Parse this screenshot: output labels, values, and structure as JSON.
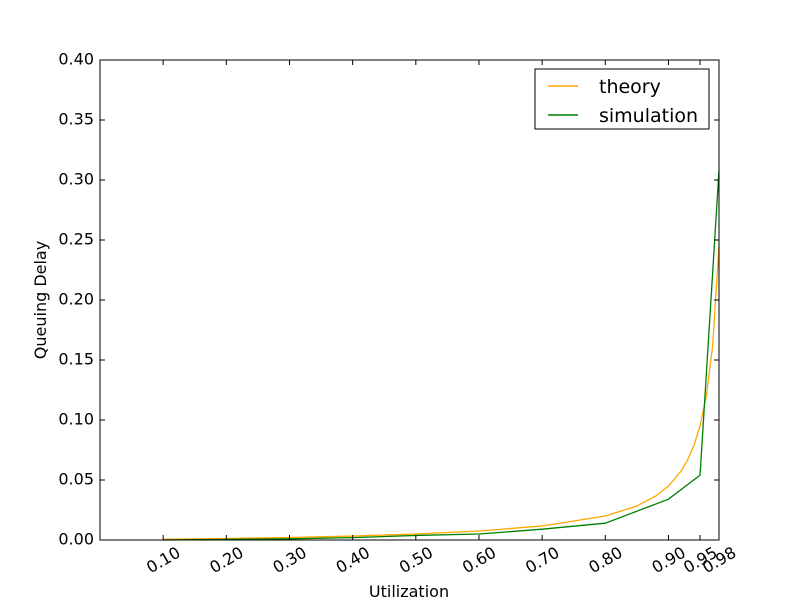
{
  "chart_data": {
    "type": "line",
    "title": "",
    "xlabel": "Utilization",
    "ylabel": "Queuing Delay",
    "xlim": [
      0,
      0.98
    ],
    "ylim": [
      0,
      0.4
    ],
    "grid": false,
    "legend_placement": "top-right",
    "x_ticks": [
      0.1,
      0.2,
      0.3,
      0.4,
      0.5,
      0.6,
      0.7,
      0.8,
      0.9,
      0.95,
      0.98
    ],
    "x_tick_labels": [
      "0.10",
      "0.20",
      "0.30",
      "0.40",
      "0.50",
      "0.60",
      "0.70",
      "0.80",
      "0.90",
      "0.95",
      "0.98"
    ],
    "y_ticks": [
      0.0,
      0.05,
      0.1,
      0.15,
      0.2,
      0.25,
      0.3,
      0.35,
      0.4
    ],
    "y_tick_labels": [
      "0.00",
      "0.05",
      "0.10",
      "0.15",
      "0.20",
      "0.25",
      "0.30",
      "0.35",
      "0.40"
    ],
    "series": [
      {
        "name": "theory",
        "color": "#ffa500",
        "x": [
          0.1,
          0.2,
          0.3,
          0.4,
          0.5,
          0.6,
          0.7,
          0.8,
          0.85,
          0.88,
          0.9,
          0.92,
          0.93,
          0.94,
          0.95,
          0.96,
          0.97,
          0.98
        ],
        "y": [
          0.0006,
          0.0012,
          0.0021,
          0.0033,
          0.005,
          0.0075,
          0.0117,
          0.02,
          0.0283,
          0.0367,
          0.045,
          0.0575,
          0.0664,
          0.0783,
          0.095,
          0.12,
          0.162,
          0.245
        ]
      },
      {
        "name": "simulation",
        "color": "#008000",
        "x": [
          0.1,
          0.2,
          0.3,
          0.4,
          0.5,
          0.6,
          0.7,
          0.8,
          0.9,
          0.95,
          0.98
        ],
        "y": [
          0.0,
          0.0005,
          0.001,
          0.002,
          0.0038,
          0.005,
          0.009,
          0.014,
          0.034,
          0.054,
          0.308
        ]
      }
    ]
  }
}
